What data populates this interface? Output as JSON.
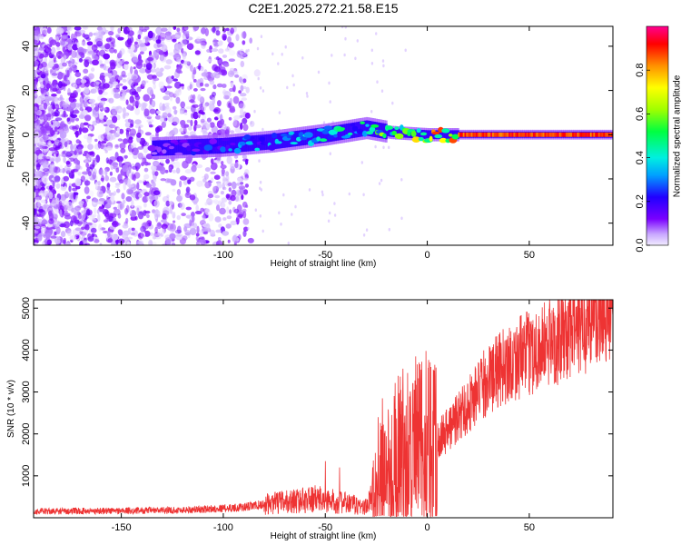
{
  "title": "C2E1.2025.272.21.58.E15",
  "chart_data": [
    {
      "type": "heatmap",
      "xlabel": "Height of straight line (km)",
      "ylabel": "Frequency (Hz)",
      "xlim": [
        -193,
        91
      ],
      "ylim": [
        -50,
        49
      ],
      "xticks": [
        -150,
        -100,
        -50,
        0,
        50
      ],
      "yticks": [
        -40,
        -20,
        0,
        20,
        40
      ],
      "colorbar": {
        "label": "Normalized spectral amplitude",
        "range": [
          0,
          1
        ],
        "ticks": [
          0.0,
          0.2,
          0.4,
          0.6,
          0.8
        ],
        "tick_labels": [
          "0.0",
          "0.2",
          "0.4",
          "0.6",
          "0.8"
        ]
      },
      "signal_track": {
        "description_points": [
          {
            "x": -130,
            "y": -6,
            "amp": 0.12
          },
          {
            "x": -100,
            "y": -5,
            "amp": 0.25
          },
          {
            "x": -75,
            "y": -3,
            "amp": 0.32
          },
          {
            "x": -50,
            "y": 0,
            "amp": 0.38
          },
          {
            "x": -30,
            "y": 3,
            "amp": 0.42
          },
          {
            "x": -18,
            "y": 1,
            "amp": 0.55
          },
          {
            "x": 0,
            "y": 0,
            "amp": 0.65
          },
          {
            "x": 15,
            "y": 0,
            "amp": 0.9
          },
          {
            "x": 90,
            "y": 0,
            "amp": 0.95
          }
        ]
      }
    },
    {
      "type": "line",
      "xlabel": "Height of straight line (km)",
      "ylabel": "SNR (10 * v/v)",
      "xlim": [
        -193,
        91
      ],
      "ylim": [
        0,
        5200
      ],
      "xticks": [
        -150,
        -100,
        -50,
        0,
        50
      ],
      "yticks": [
        1000,
        2000,
        3000,
        4000,
        5000
      ],
      "series": [
        {
          "name": "SNR",
          "color": "#ee3333",
          "trend": [
            {
              "x": -193,
              "y": 150
            },
            {
              "x": -120,
              "y": 180
            },
            {
              "x": -90,
              "y": 250
            },
            {
              "x": -75,
              "y": 350
            },
            {
              "x": -55,
              "y": 450
            },
            {
              "x": -40,
              "y": 350
            },
            {
              "x": -30,
              "y": 250
            },
            {
              "x": -25,
              "y": 700
            },
            {
              "x": -20,
              "y": 1300
            },
            {
              "x": -10,
              "y": 1600
            },
            {
              "x": 0,
              "y": 1750
            },
            {
              "x": 10,
              "y": 2100
            },
            {
              "x": 20,
              "y": 2700
            },
            {
              "x": 30,
              "y": 3300
            },
            {
              "x": 40,
              "y": 3700
            },
            {
              "x": 55,
              "y": 4050
            },
            {
              "x": 70,
              "y": 4400
            },
            {
              "x": 82,
              "y": 4750
            },
            {
              "x": 91,
              "y": 5000
            }
          ],
          "spikes": [
            {
              "x": -50,
              "y": 1350
            },
            {
              "x": -43,
              "y": 1200
            },
            {
              "x": -24,
              "y": 2400
            },
            {
              "x": -22,
              "y": 2850
            },
            {
              "x": -19,
              "y": 2300
            },
            {
              "x": -13,
              "y": 3050
            },
            {
              "x": -7,
              "y": 3200
            }
          ]
        }
      ]
    }
  ]
}
